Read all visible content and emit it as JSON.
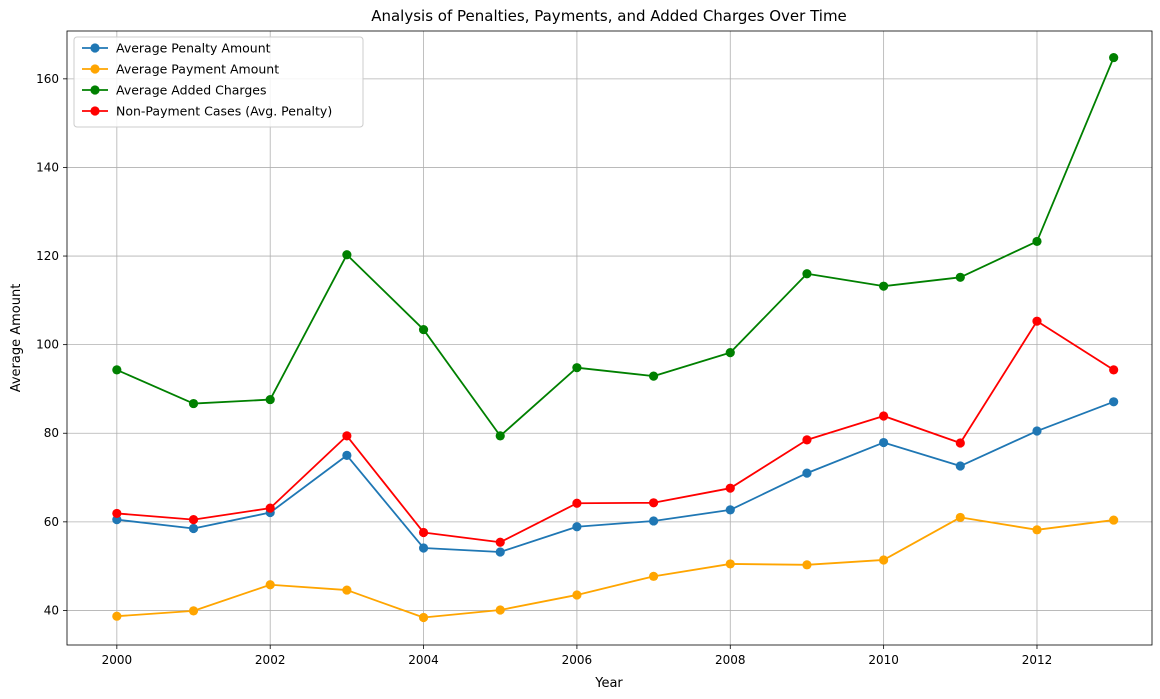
{
  "chart_data": {
    "type": "line",
    "title": "Analysis of Penalties, Payments, and Added Charges Over Time",
    "xlabel": "Year",
    "ylabel": "Average Amount",
    "xlim": [
      1999.35,
      2013.5
    ],
    "ylim": [
      32.2,
      170.8
    ],
    "xticks": [
      2000,
      2002,
      2004,
      2006,
      2008,
      2010,
      2012
    ],
    "yticks": [
      40,
      60,
      80,
      100,
      120,
      140,
      160
    ],
    "grid": true,
    "legend_position": "top-left",
    "x": [
      2000,
      2001,
      2002,
      2003,
      2004,
      2005,
      2006,
      2007,
      2008,
      2009,
      2010,
      2011,
      2012,
      2013
    ],
    "series": [
      {
        "name": "Average Penalty Amount",
        "color": "#1f77b4",
        "values": [
          60.5,
          58.5,
          62.1,
          75.0,
          54.1,
          53.2,
          58.9,
          60.2,
          62.7,
          71.0,
          77.9,
          72.6,
          80.5,
          87.1
        ]
      },
      {
        "name": "Average Payment Amount",
        "color": "#ffa500",
        "values": [
          38.7,
          39.9,
          45.8,
          44.6,
          38.4,
          40.1,
          43.5,
          47.7,
          50.5,
          50.3,
          51.4,
          61.0,
          58.2,
          60.4
        ]
      },
      {
        "name": "Average Added Charges",
        "color": "#008000",
        "values": [
          94.3,
          86.7,
          87.6,
          120.3,
          103.4,
          79.4,
          94.8,
          92.9,
          98.2,
          116.0,
          113.2,
          115.2,
          123.3,
          164.8
        ]
      },
      {
        "name": "Non-Payment Cases (Avg. Penalty)",
        "color": "#ff0000",
        "values": [
          61.9,
          60.5,
          63.1,
          79.4,
          57.6,
          55.4,
          64.2,
          64.3,
          67.6,
          78.5,
          83.9,
          77.8,
          105.3,
          94.3
        ]
      }
    ]
  }
}
